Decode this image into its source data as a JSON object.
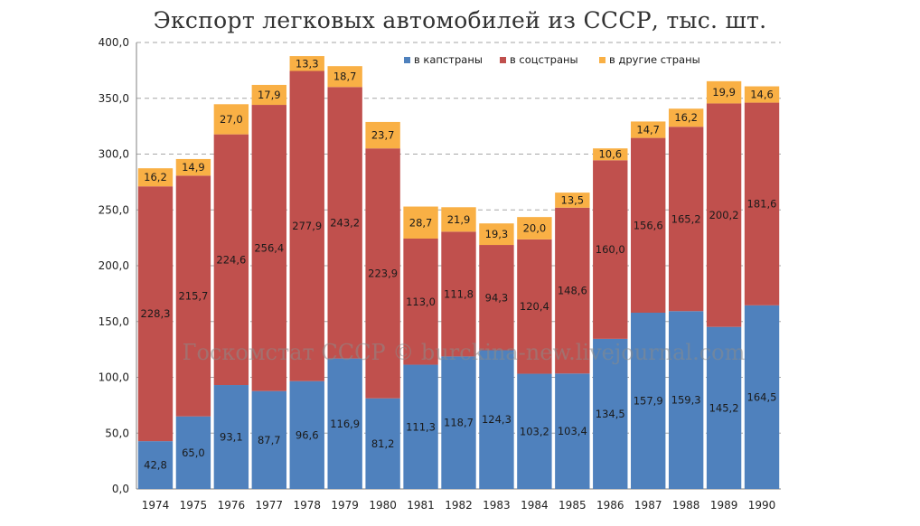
{
  "chart_data": {
    "type": "bar",
    "stacked": true,
    "title": "Экспорт легковых автомобилей из СССР, тыс. шт.",
    "xlabel": "",
    "ylabel": "",
    "ylim": [
      0,
      400
    ],
    "ytick_step": 50,
    "ytick_labels": [
      "0,0",
      "50,0",
      "100,0",
      "150,0",
      "200,0",
      "250,0",
      "300,0",
      "350,0",
      "400,0"
    ],
    "grid": true,
    "legend_position": "top-right",
    "categories": [
      "1974",
      "1975",
      "1976",
      "1977",
      "1978",
      "1979",
      "1980",
      "1981",
      "1982",
      "1983",
      "1984",
      "1985",
      "1986",
      "1987",
      "1988",
      "1989",
      "1990"
    ],
    "series": [
      {
        "name": "в капстраны",
        "color": "#4f81bd",
        "values": [
          42.8,
          65.0,
          93.1,
          87.7,
          96.6,
          116.9,
          81.2,
          111.3,
          118.7,
          124.3,
          103.2,
          103.4,
          134.5,
          157.9,
          159.3,
          145.2,
          164.5
        ],
        "labels": [
          "42,8",
          "65,0",
          "93,1",
          "87,7",
          "96,6",
          "116,9",
          "81,2",
          "111,3",
          "118,7",
          "124,3",
          "103,2",
          "103,4",
          "134,5",
          "157,9",
          "159,3",
          "145,2",
          "164,5"
        ]
      },
      {
        "name": "в соцстраны",
        "color": "#c0504d",
        "values": [
          228.3,
          215.7,
          224.6,
          256.4,
          277.9,
          243.2,
          223.9,
          113.0,
          111.8,
          94.3,
          120.4,
          148.6,
          160.0,
          156.6,
          165.2,
          200.2,
          181.6
        ],
        "labels": [
          "228,3",
          "215,7",
          "224,6",
          "256,4",
          "277,9",
          "243,2",
          "223,9",
          "113,0",
          "111,8",
          "94,3",
          "120,4",
          "148,6",
          "160,0",
          "156,6",
          "165,2",
          "200,2",
          "181,6"
        ]
      },
      {
        "name": "в другие страны",
        "color": "#f9b045",
        "values": [
          16.2,
          14.9,
          27.0,
          17.9,
          13.3,
          18.7,
          23.7,
          28.7,
          21.9,
          19.3,
          20.0,
          13.5,
          10.6,
          14.7,
          16.2,
          19.9,
          14.6
        ],
        "labels": [
          "16,2",
          "14,9",
          "27,0",
          "17,9",
          "13,3",
          "18,7",
          "23,7",
          "28,7",
          "21,9",
          "19,3",
          "20,0",
          "13,5",
          "10,6",
          "14,7",
          "16,2",
          "19,9",
          "14,6"
        ]
      }
    ],
    "watermark": "Госкомстат СССР © burckina-new.livejournal.com"
  }
}
